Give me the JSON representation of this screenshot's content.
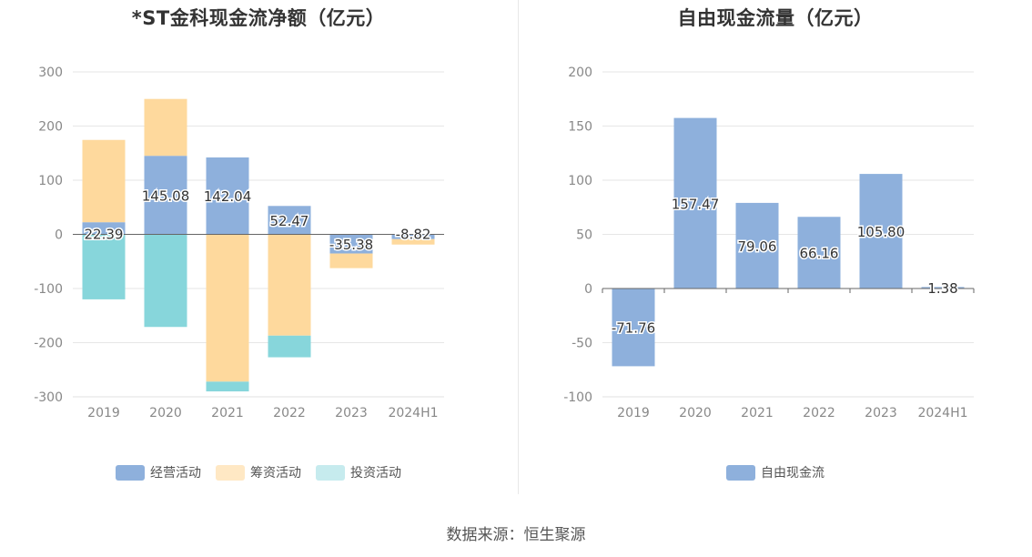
{
  "source_text": "数据来源：恒生聚源",
  "chart_data": [
    {
      "type": "bar",
      "stacked": true,
      "title": "*ST金科现金流净额（亿元）",
      "categories": [
        "2019",
        "2020",
        "2021",
        "2022",
        "2023",
        "2024H1"
      ],
      "ylim": [
        -300,
        300
      ],
      "yticks": [
        300,
        200,
        100,
        0,
        -100,
        -200,
        -300
      ],
      "grid": true,
      "legend_position": "bottom",
      "series": [
        {
          "name": "经营活动",
          "color": "#8eb0dc",
          "values": [
            22.39,
            145.08,
            142.04,
            52.47,
            -35.38,
            -8.82
          ],
          "labels": [
            "22.39",
            "145.08",
            "142.04",
            "52.47",
            "-35.38",
            "-8.82"
          ]
        },
        {
          "name": "筹资活动",
          "color": "#fed99d",
          "values": [
            152,
            105,
            -272,
            -187,
            -27,
            -10
          ]
        },
        {
          "name": "投资活动",
          "color": "#87d6db",
          "values": [
            -120,
            -171,
            -18,
            -40,
            0,
            0
          ]
        }
      ],
      "legend_colors": [
        "#8eb0dc",
        "#ffe8c4",
        "#c6ebee"
      ]
    },
    {
      "type": "bar",
      "title": "自由现金流量（亿元）",
      "categories": [
        "2019",
        "2020",
        "2021",
        "2022",
        "2023",
        "2024H1"
      ],
      "ylim": [
        -100,
        200
      ],
      "yticks": [
        200,
        150,
        100,
        50,
        0,
        -50,
        -100
      ],
      "grid": true,
      "legend_position": "bottom",
      "series": [
        {
          "name": "自由现金流",
          "color": "#8eb0dc",
          "values": [
            -71.76,
            157.47,
            79.06,
            66.16,
            105.8,
            1.38
          ],
          "labels": [
            "-71.76",
            "157.47",
            "79.06",
            "66.16",
            "105.80",
            "1.38"
          ]
        }
      ],
      "legend_colors": [
        "#8eb0dc"
      ]
    }
  ]
}
